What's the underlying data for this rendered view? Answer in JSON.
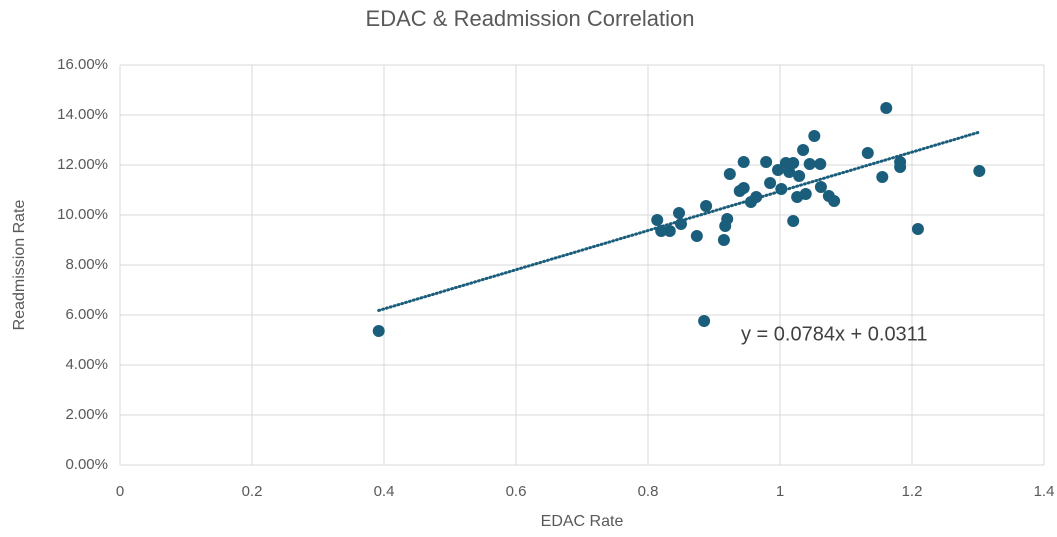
{
  "chart_data": {
    "type": "scatter",
    "title": "EDAC & Readmission Correlation",
    "x_label": "EDAC Rate",
    "y_label": "Readmission Rate",
    "annotation": "y = 0.0784x + 0.0311",
    "xlim": [
      0,
      1.4
    ],
    "xticks": [
      0,
      0.2,
      0.4,
      0.6,
      0.8,
      1,
      1.2,
      1.4
    ],
    "ylim": [
      0,
      16
    ],
    "yticks": [
      {
        "value": 0,
        "label": "0.00%"
      },
      {
        "value": 2,
        "label": "2.00%"
      },
      {
        "value": 4,
        "label": "4.00%"
      },
      {
        "value": 6,
        "label": "6.00%"
      },
      {
        "value": 8,
        "label": "8.00%"
      },
      {
        "value": 10,
        "label": "10.00%"
      },
      {
        "value": 12,
        "label": "12.00%"
      },
      {
        "value": 14,
        "label": "14.00%"
      },
      {
        "value": 16,
        "label": "16.00%"
      }
    ],
    "grid": true,
    "color": "#1b5e7b",
    "x": [
      0.392,
      0.814,
      0.82,
      0.833,
      0.847,
      0.85,
      0.874,
      0.888,
      0.885,
      0.915,
      0.917,
      0.92,
      0.924,
      0.939,
      0.945,
      0.945,
      0.956,
      0.964,
      0.979,
      0.985,
      0.997,
      1.002,
      1.009,
      1.014,
      1.02,
      1.02,
      1.026,
      1.029,
      1.035,
      1.039,
      1.045,
      1.052,
      1.061,
      1.062,
      1.074,
      1.082,
      1.133,
      1.155,
      1.161,
      1.182,
      1.182,
      1.209,
      1.302
    ],
    "values": [
      5.36,
      9.8,
      9.36,
      9.36,
      10.08,
      9.64,
      9.16,
      10.36,
      5.76,
      9.0,
      9.56,
      9.84,
      11.64,
      10.96,
      11.08,
      12.12,
      10.52,
      10.72,
      12.12,
      11.28,
      11.8,
      11.04,
      12.08,
      11.72,
      12.08,
      9.76,
      10.72,
      11.56,
      12.6,
      10.84,
      12.04,
      13.16,
      12.04,
      11.12,
      10.76,
      10.56,
      12.48,
      11.52,
      14.28,
      12.12,
      11.92,
      9.44,
      11.76
    ],
    "trendline": {
      "x": [
        0.392,
        1.3
      ],
      "values": [
        6.18,
        13.3
      ]
    }
  }
}
